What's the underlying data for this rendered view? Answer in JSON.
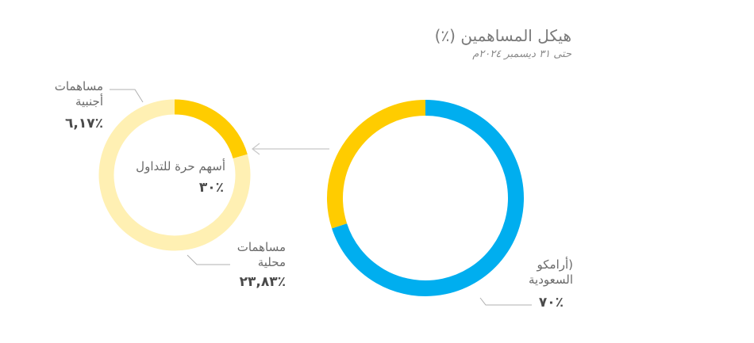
{
  "chart_data": {
    "type": "pie",
    "title": "هيكل المساهمين (٪)",
    "subtitle": "حتى ٣١ ديسمبر ٢٠٢٤م",
    "charts": [
      {
        "name": "main",
        "slices": [
          {
            "label_lines": [
              "(أرامكو",
              "السعودية"
            ],
            "value": 70,
            "display": "٪٧٠",
            "color": "#00AEEF"
          },
          {
            "label": "",
            "value": 30,
            "display": "",
            "color": "#FFCC00"
          }
        ]
      },
      {
        "name": "free-float",
        "center_label": "أسهم حرة للتداول",
        "center_value": "٪٣٠",
        "slices": [
          {
            "label_lines": [
              "مساهمات",
              "أجنبية"
            ],
            "value": 6.17,
            "display": "٪٦,١٧",
            "color": "#FFCC00"
          },
          {
            "label_lines": [
              "مساهمات",
              "محلية"
            ],
            "value": 23.83,
            "display": "٪٢٣,٨٣",
            "color": "#FFF0B3"
          }
        ]
      }
    ]
  },
  "colors": {
    "arrow": "#c8c8c8",
    "leader": "#b0b0b0"
  }
}
